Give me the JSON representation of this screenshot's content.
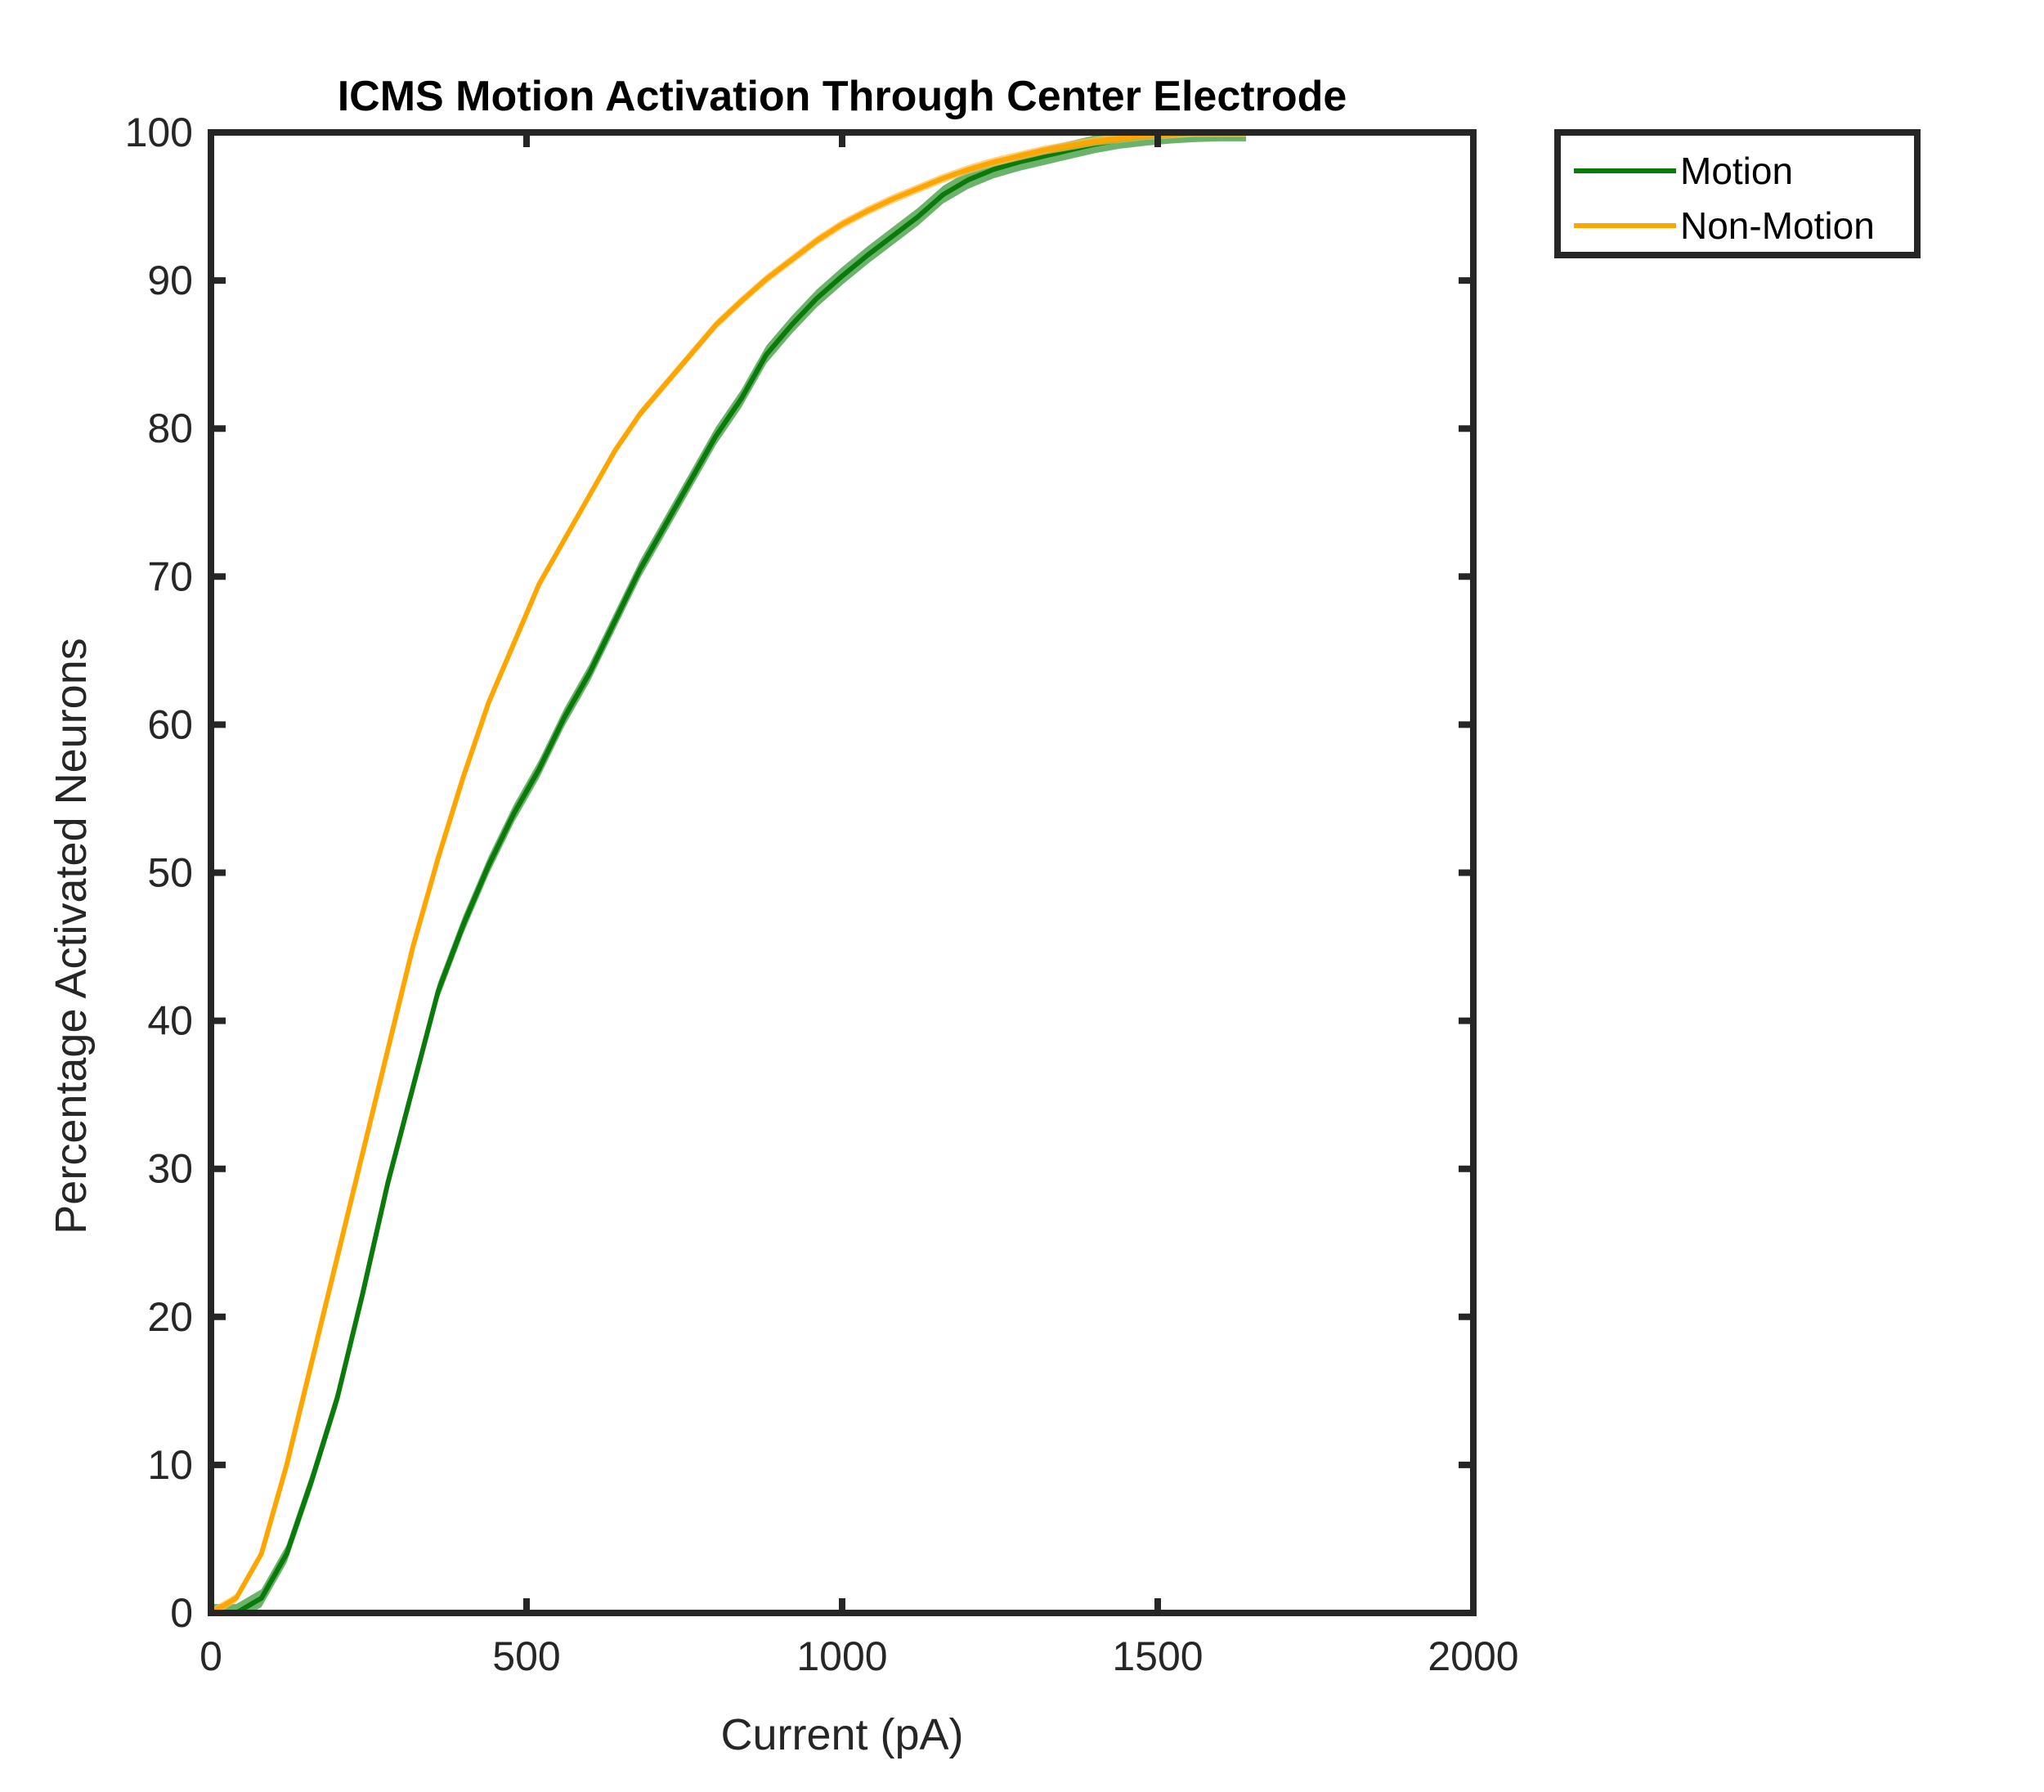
{
  "chart_data": {
    "type": "line",
    "title": "ICMS Motion Activation Through Center Electrode",
    "xlabel": "Current (pA)",
    "ylabel": "Percentage Activated Neurons",
    "xlim": [
      0,
      2000
    ],
    "ylim": [
      0,
      100
    ],
    "xticks": [
      0,
      500,
      1000,
      1500,
      2000
    ],
    "yticks": [
      0,
      10,
      20,
      30,
      40,
      50,
      60,
      70,
      80,
      90,
      100
    ],
    "grid": false,
    "legend_position": "outside-top-right",
    "series": [
      {
        "name": "Motion",
        "color": "#0a7a0a",
        "band_color": "#3a9a3a",
        "band_halfwidth": 0.6,
        "x": [
          0,
          40,
          80,
          120,
          160,
          200,
          240,
          280,
          320,
          360,
          400,
          440,
          480,
          520,
          560,
          600,
          640,
          680,
          720,
          760,
          800,
          840,
          880,
          920,
          960,
          1000,
          1040,
          1080,
          1120,
          1160,
          1200,
          1240,
          1280,
          1320,
          1360,
          1400,
          1440,
          1480,
          1520,
          1560,
          1600,
          1640
        ],
        "y": [
          0,
          0,
          1,
          4,
          9,
          14.5,
          21.5,
          29,
          35.5,
          42,
          46.5,
          50.5,
          54,
          57,
          60.5,
          63.5,
          67,
          70.5,
          73.5,
          76.5,
          79.5,
          82,
          85,
          87,
          88.8,
          90.3,
          91.7,
          93,
          94.3,
          95.8,
          96.8,
          97.5,
          98,
          98.4,
          98.8,
          99.2,
          99.5,
          99.7,
          99.85,
          99.95,
          100,
          100
        ]
      },
      {
        "name": "Non-Motion",
        "color": "#ffa500",
        "band_color": "#ffc04d",
        "band_halfwidth": 0.3,
        "x": [
          0,
          40,
          80,
          120,
          160,
          200,
          240,
          280,
          320,
          360,
          400,
          440,
          480,
          520,
          560,
          600,
          640,
          680,
          720,
          760,
          800,
          840,
          880,
          920,
          960,
          1000,
          1040,
          1080,
          1120,
          1160,
          1200,
          1240,
          1280,
          1320,
          1360,
          1400,
          1440,
          1480,
          1520,
          1560,
          1600,
          1640
        ],
        "y": [
          0,
          1,
          4,
          10,
          17,
          24,
          31,
          38,
          45,
          51,
          56.5,
          61.5,
          65.5,
          69.5,
          72.5,
          75.5,
          78.5,
          81,
          83,
          85,
          87,
          88.6,
          90.1,
          91.4,
          92.7,
          93.8,
          94.7,
          95.5,
          96.2,
          96.9,
          97.5,
          98,
          98.4,
          98.8,
          99.1,
          99.4,
          99.6,
          99.8,
          99.9,
          100,
          100,
          100
        ]
      }
    ]
  }
}
